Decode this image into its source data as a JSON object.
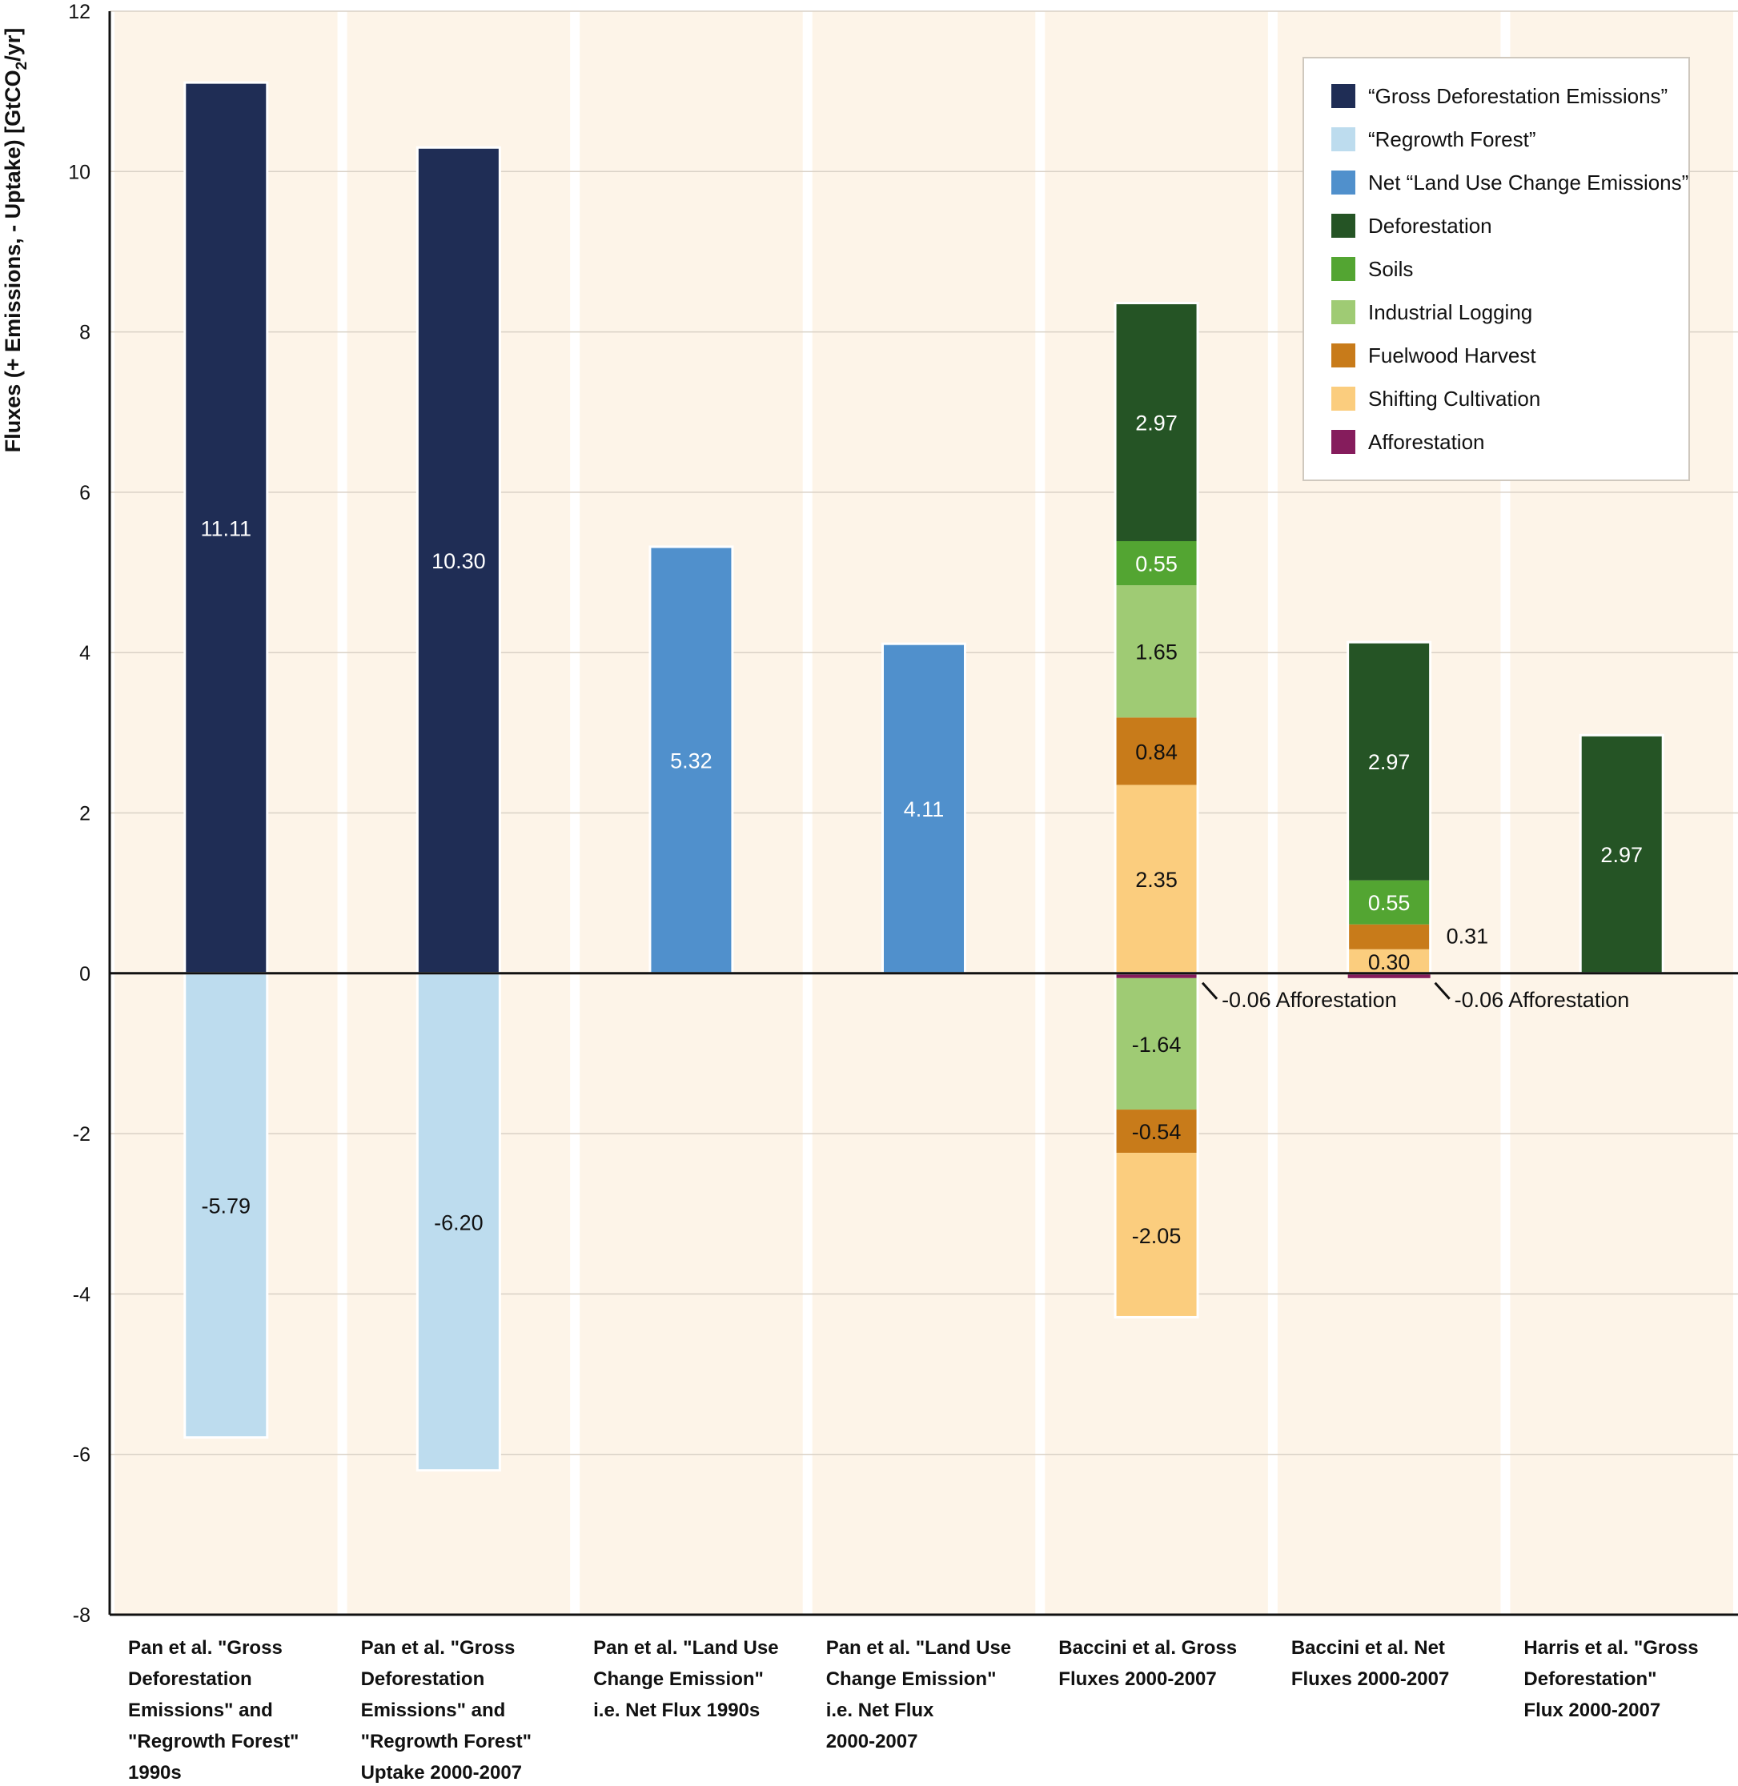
{
  "chart_data": {
    "type": "bar",
    "stacked": true,
    "ylabel": "Fluxes (+ Emissions, - Uptake) [GtCO2/yr]",
    "ylim": [
      -8,
      12
    ],
    "yticks": [
      "12",
      "10",
      "8",
      "6",
      "4",
      "2",
      "0",
      "-2",
      "-4",
      "-6",
      "-8"
    ],
    "grid": true,
    "legend_position": "top-right",
    "categories": [
      {
        "lines": [
          "Pan et al. \"Gross",
          "Deforestation",
          "Emissions\" and",
          "\"Regrowth Forest\"",
          "1990s"
        ]
      },
      {
        "lines": [
          "Pan et al. \"Gross",
          "Deforestation",
          "Emissions\" and",
          "\"Regrowth Forest\"",
          "Uptake 2000-2007"
        ]
      },
      {
        "lines": [
          "Pan et al. \"Land Use",
          "Change Emission\"",
          "i.e. Net Flux 1990s"
        ]
      },
      {
        "lines": [
          "Pan et al. \"Land Use",
          "Change Emission\"",
          "i.e. Net Flux",
          "2000-2007"
        ]
      },
      {
        "lines": [
          "Baccini et al. Gross",
          "Fluxes 2000-2007"
        ]
      },
      {
        "lines": [
          "Baccini et al. Net",
          "Fluxes  2000-2007"
        ]
      },
      {
        "lines": [
          "Harris et al. \"Gross",
          "Deforestation\"",
          "Flux  2000-2007"
        ]
      }
    ],
    "series": [
      {
        "name": "“Gross Deforestation Emissions”",
        "color": "#1f2d55"
      },
      {
        "name": "“Regrowth Forest”",
        "color": "#bddcee"
      },
      {
        "name": "Net “Land Use Change Emissions”",
        "color": "#5090cc"
      },
      {
        "name": "Deforestation",
        "color": "#255425"
      },
      {
        "name": "Soils",
        "color": "#53a532"
      },
      {
        "name": "Industrial Logging",
        "color": "#9fcb74"
      },
      {
        "name": "Fuelwood Harvest",
        "color": "#c87b1a"
      },
      {
        "name": "Shifting Cultivation",
        "color": "#fbcd7e"
      },
      {
        "name": "Afforestation",
        "color": "#851c5c"
      }
    ],
    "bars": [
      {
        "category": 0,
        "series": 0,
        "value": 11.11,
        "label": "11.11",
        "labelColor": "#ffffff"
      },
      {
        "category": 0,
        "series": 1,
        "value": -5.79,
        "label": "-5.79",
        "labelColor": "#111111"
      },
      {
        "category": 1,
        "series": 0,
        "value": 10.3,
        "label": "10.30",
        "labelColor": "#ffffff"
      },
      {
        "category": 1,
        "series": 1,
        "value": -6.2,
        "label": "-6.20",
        "labelColor": "#111111"
      },
      {
        "category": 2,
        "series": 2,
        "value": 5.32,
        "label": "5.32",
        "labelColor": "#ffffff"
      },
      {
        "category": 3,
        "series": 2,
        "value": 4.11,
        "label": "4.11",
        "labelColor": "#ffffff"
      },
      {
        "category": 4,
        "series": 7,
        "value": 2.35,
        "label": "2.35",
        "labelColor": "#111111"
      },
      {
        "category": 4,
        "series": 6,
        "value": 0.84,
        "label": "0.84",
        "labelColor": "#111111"
      },
      {
        "category": 4,
        "series": 5,
        "value": 1.65,
        "label": "1.65",
        "labelColor": "#111111"
      },
      {
        "category": 4,
        "series": 4,
        "value": 0.55,
        "label": "0.55",
        "labelColor": "#ffffff"
      },
      {
        "category": 4,
        "series": 3,
        "value": 2.97,
        "label": "2.97",
        "labelColor": "#ffffff"
      },
      {
        "category": 4,
        "series": 8,
        "value": -0.06,
        "label": "",
        "labelColor": "#111111"
      },
      {
        "category": 4,
        "series": 5,
        "value": -1.64,
        "label": "-1.64",
        "labelColor": "#111111"
      },
      {
        "category": 4,
        "series": 6,
        "value": -0.54,
        "label": "-0.54",
        "labelColor": "#111111"
      },
      {
        "category": 4,
        "series": 7,
        "value": -2.05,
        "label": "-2.05",
        "labelColor": "#111111"
      },
      {
        "category": 5,
        "series": 7,
        "value": 0.3,
        "label": "0.30",
        "labelColor": "#111111"
      },
      {
        "category": 5,
        "series": 6,
        "value": 0.31,
        "label": "",
        "labelColor": "#111111"
      },
      {
        "category": 5,
        "series": 4,
        "value": 0.55,
        "label": "0.55",
        "labelColor": "#ffffff"
      },
      {
        "category": 5,
        "series": 3,
        "value": 2.97,
        "label": "2.97",
        "labelColor": "#ffffff"
      },
      {
        "category": 5,
        "series": 8,
        "value": -0.06,
        "label": "",
        "labelColor": "#111111"
      },
      {
        "category": 6,
        "series": 3,
        "value": 2.97,
        "label": "2.97",
        "labelColor": "#ffffff"
      }
    ],
    "annotations": [
      {
        "category": 4,
        "text": "-0.06 Afforestation",
        "kind": "leader"
      },
      {
        "category": 5,
        "text": "-0.06 Afforestation",
        "kind": "leader"
      },
      {
        "category": 5,
        "text": "0.31",
        "kind": "side",
        "atValue": 0.46
      }
    ]
  }
}
